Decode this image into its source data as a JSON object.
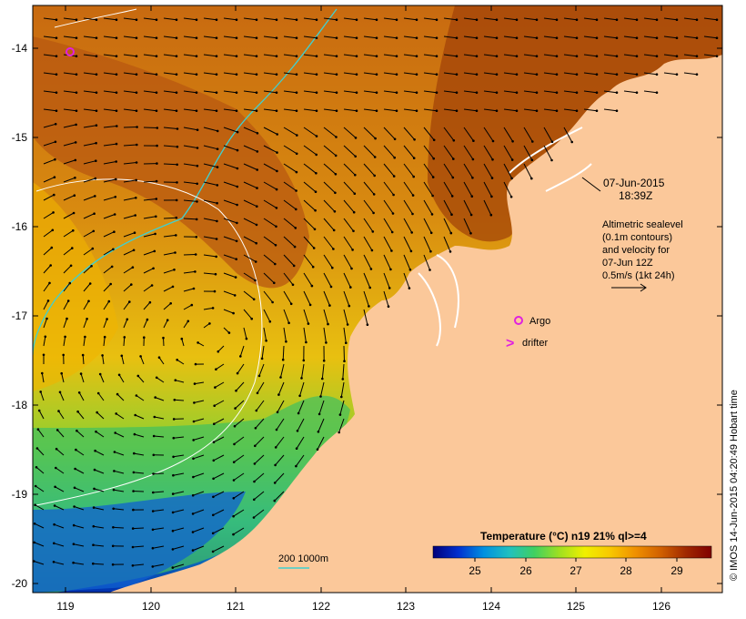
{
  "annotations": {
    "date": "07-Jun-2015",
    "time": "18:39Z",
    "altimetry_lines": [
      "Altimetric sealevel",
      "(0.1m contours)",
      "and velocity for",
      "07-Jun 12Z",
      "0.5m/s (1kt 24h)"
    ],
    "argo_label": "Argo",
    "drifter_label": "drifter",
    "drifter_symbol": ">",
    "bathymetry_label": "200  1000m",
    "credit": "© IMOS 14-Jun-2015 04:20:49 Hobart time"
  },
  "axes": {
    "lon_ticks": [
      "119",
      "120",
      "121",
      "122",
      "123",
      "124",
      "125",
      "126"
    ],
    "lat_ticks": [
      "-14",
      "-15",
      "-16",
      "-17",
      "-18",
      "-19",
      "-20"
    ]
  },
  "colorbar": {
    "title": "Temperature (°C) n19 21% ql>=4",
    "ticks": [
      "25",
      "26",
      "27",
      "28",
      "29"
    ],
    "stops": [
      "#00007a",
      "#0030d0",
      "#0090e0",
      "#20c0c0",
      "#40d060",
      "#a0e020",
      "#f0f000",
      "#f8c800",
      "#f09000",
      "#d06000",
      "#a02800",
      "#800000"
    ]
  },
  "colors": {
    "land": "#fbc89a",
    "argo": "#e020e0",
    "contour": "#ffffff",
    "bathy": "#40d0d0"
  }
}
